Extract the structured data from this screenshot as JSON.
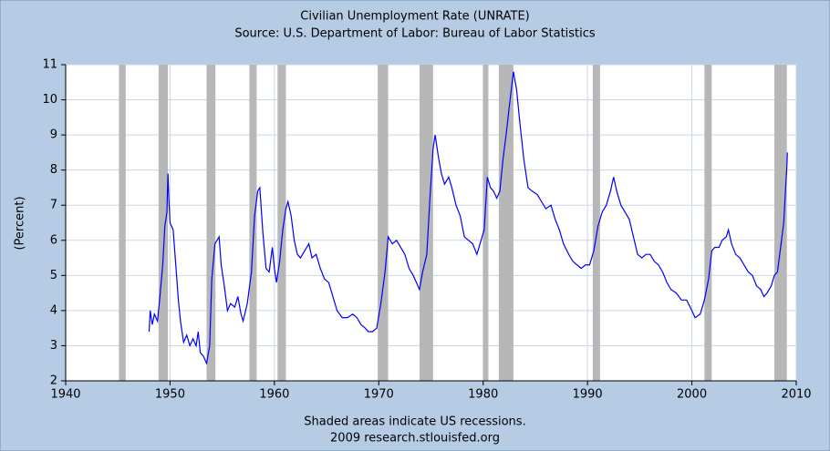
{
  "chart_data": {
    "type": "line",
    "title": "Civilian Unemployment Rate (UNRATE)",
    "subtitle": "Source: U.S. Department of Labor: Bureau of Labor Statistics",
    "y_label": "(Percent)",
    "notes": [
      "Shaded areas indicate US recessions.",
      "2009 research.stlouisfed.org"
    ],
    "xlim": [
      1940,
      2010
    ],
    "ylim": [
      2,
      11
    ],
    "xticks": [
      1940,
      1950,
      1960,
      1970,
      1980,
      1990,
      2000,
      2010
    ],
    "yticks": [
      2,
      3,
      4,
      5,
      6,
      7,
      8,
      9,
      10,
      11
    ],
    "grid": true,
    "color": "#0000ff",
    "recession_color": "#b7b7b7",
    "recessions": [
      [
        1945.1,
        1945.75
      ],
      [
        1948.9,
        1949.8
      ],
      [
        1953.5,
        1954.35
      ],
      [
        1957.6,
        1958.3
      ],
      [
        1960.3,
        1961.1
      ],
      [
        1969.9,
        1970.9
      ],
      [
        1973.9,
        1975.2
      ],
      [
        1980.0,
        1980.5
      ],
      [
        1981.5,
        1982.9
      ],
      [
        1990.5,
        1991.2
      ],
      [
        2001.2,
        2001.9
      ],
      [
        2007.9,
        2009.1
      ]
    ],
    "x": [
      1948.0,
      1948.1,
      1948.3,
      1948.5,
      1948.8,
      1949.0,
      1949.3,
      1949.5,
      1949.7,
      1949.8,
      1949.9,
      1950.0,
      1950.3,
      1950.5,
      1950.8,
      1951.0,
      1951.3,
      1951.6,
      1951.9,
      1952.2,
      1952.5,
      1952.7,
      1952.9,
      1953.2,
      1953.5,
      1953.8,
      1954.0,
      1954.3,
      1954.7,
      1954.9,
      1955.2,
      1955.5,
      1955.8,
      1956.2,
      1956.5,
      1956.8,
      1957.0,
      1957.4,
      1957.8,
      1958.1,
      1958.4,
      1958.6,
      1958.9,
      1959.2,
      1959.5,
      1959.8,
      1960.0,
      1960.2,
      1960.5,
      1960.8,
      1961.1,
      1961.3,
      1961.6,
      1961.9,
      1962.2,
      1962.5,
      1962.9,
      1963.3,
      1963.6,
      1964.0,
      1964.4,
      1964.8,
      1965.2,
      1965.6,
      1966.0,
      1966.5,
      1967.0,
      1967.5,
      1967.9,
      1968.3,
      1968.7,
      1969.0,
      1969.4,
      1969.8,
      1970.2,
      1970.6,
      1970.9,
      1971.3,
      1971.7,
      1972.1,
      1972.5,
      1972.9,
      1973.3,
      1973.6,
      1973.9,
      1974.2,
      1974.6,
      1974.9,
      1975.2,
      1975.4,
      1975.7,
      1976.0,
      1976.3,
      1976.7,
      1977.0,
      1977.4,
      1977.8,
      1978.2,
      1978.6,
      1979.0,
      1979.4,
      1979.8,
      1980.1,
      1980.4,
      1980.7,
      1981.0,
      1981.3,
      1981.6,
      1981.9,
      1982.2,
      1982.5,
      1982.9,
      1983.2,
      1983.5,
      1983.9,
      1984.3,
      1984.7,
      1985.2,
      1985.6,
      1986.0,
      1986.5,
      1986.9,
      1987.3,
      1987.7,
      1988.2,
      1988.6,
      1989.0,
      1989.4,
      1989.8,
      1990.2,
      1990.6,
      1991.0,
      1991.4,
      1991.8,
      1992.2,
      1992.5,
      1992.8,
      1993.2,
      1993.6,
      1994.0,
      1994.4,
      1994.8,
      1995.2,
      1995.6,
      1996.0,
      1996.4,
      1996.8,
      1997.2,
      1997.6,
      1998.0,
      1998.5,
      1999.0,
      1999.5,
      2000.0,
      2000.3,
      2000.8,
      2001.2,
      2001.6,
      2001.9,
      2002.2,
      2002.6,
      2002.9,
      2003.3,
      2003.5,
      2003.8,
      2004.2,
      2004.6,
      2005.0,
      2005.4,
      2005.8,
      2006.2,
      2006.6,
      2006.9,
      2007.2,
      2007.6,
      2007.9,
      2008.2,
      2008.5,
      2008.8,
      2009.0,
      2009.1,
      2009.15
    ],
    "values": [
      3.4,
      4.0,
      3.6,
      3.9,
      3.7,
      4.3,
      5.3,
      6.4,
      6.8,
      7.9,
      7.1,
      6.5,
      6.3,
      5.5,
      4.3,
      3.7,
      3.1,
      3.3,
      3.0,
      3.2,
      3.0,
      3.4,
      2.8,
      2.7,
      2.5,
      3.0,
      4.9,
      5.9,
      6.1,
      5.3,
      4.7,
      4.0,
      4.2,
      4.1,
      4.4,
      3.9,
      3.7,
      4.2,
      5.1,
      6.7,
      7.4,
      7.5,
      6.2,
      5.2,
      5.1,
      5.8,
      5.2,
      4.8,
      5.4,
      6.3,
      6.9,
      7.1,
      6.7,
      6.0,
      5.6,
      5.5,
      5.7,
      5.9,
      5.5,
      5.6,
      5.2,
      4.9,
      4.8,
      4.4,
      4.0,
      3.8,
      3.8,
      3.9,
      3.8,
      3.6,
      3.5,
      3.4,
      3.4,
      3.5,
      4.2,
      5.1,
      6.1,
      5.9,
      6.0,
      5.8,
      5.6,
      5.2,
      5.0,
      4.8,
      4.6,
      5.1,
      5.6,
      7.2,
      8.6,
      9.0,
      8.4,
      7.9,
      7.6,
      7.8,
      7.5,
      7.0,
      6.7,
      6.1,
      6.0,
      5.9,
      5.6,
      6.0,
      6.3,
      7.8,
      7.5,
      7.4,
      7.2,
      7.4,
      8.3,
      9.0,
      9.8,
      10.8,
      10.3,
      9.4,
      8.3,
      7.5,
      7.4,
      7.3,
      7.1,
      6.9,
      7.0,
      6.6,
      6.3,
      5.9,
      5.6,
      5.4,
      5.3,
      5.2,
      5.3,
      5.3,
      5.7,
      6.4,
      6.8,
      7.0,
      7.4,
      7.8,
      7.4,
      7.0,
      6.8,
      6.6,
      6.1,
      5.6,
      5.5,
      5.6,
      5.6,
      5.4,
      5.3,
      5.1,
      4.8,
      4.6,
      4.5,
      4.3,
      4.3,
      4.0,
      3.8,
      3.9,
      4.3,
      4.9,
      5.7,
      5.8,
      5.8,
      6.0,
      6.1,
      6.3,
      5.9,
      5.6,
      5.5,
      5.3,
      5.1,
      5.0,
      4.7,
      4.6,
      4.4,
      4.5,
      4.7,
      5.0,
      5.1,
      5.8,
      6.5,
      7.6,
      8.1,
      8.5
    ]
  }
}
